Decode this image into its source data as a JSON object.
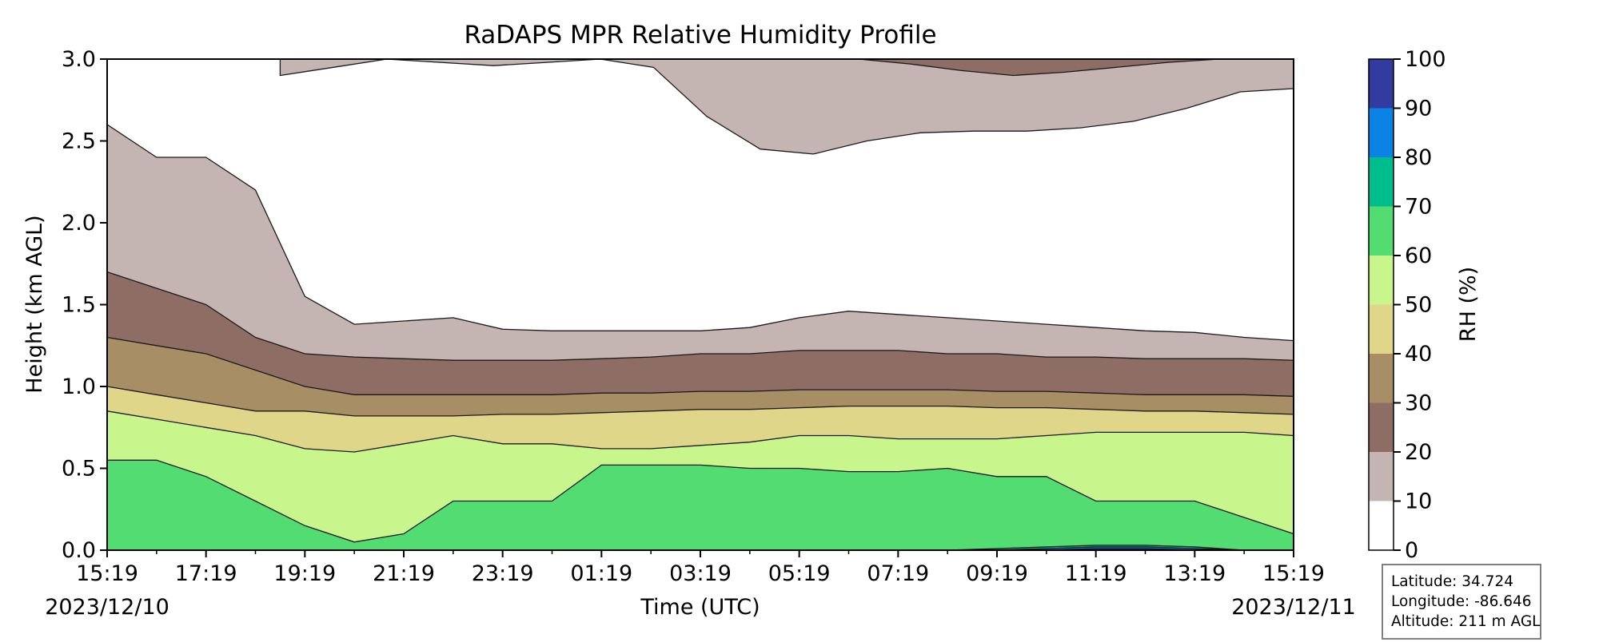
{
  "chart_data": {
    "type": "heatmap",
    "title": "RaDAPS MPR Relative Humidity Profile",
    "xlabel": "Time (UTC)",
    "ylabel": "Height (km AGL)",
    "x_ticks": [
      "15:19",
      "17:19",
      "19:19",
      "21:19",
      "23:19",
      "01:19",
      "03:19",
      "05:19",
      "07:19",
      "09:19",
      "11:19",
      "13:19",
      "15:19"
    ],
    "x_date_start": "2023/12/10",
    "x_date_end": "2023/12/11",
    "x_range_hours": [
      0,
      24
    ],
    "ylim": [
      0,
      3
    ],
    "y_ticks": [
      "0.0",
      "0.5",
      "1.0",
      "1.5",
      "2.0",
      "2.5",
      "3.0"
    ],
    "y_tick_values": [
      0,
      0.5,
      1.0,
      1.5,
      2.0,
      2.5,
      3.0
    ],
    "colorbar": {
      "label": "RH (%)",
      "ticks": [
        "0",
        "10",
        "20",
        "30",
        "40",
        "50",
        "60",
        "70",
        "80",
        "90",
        "100"
      ],
      "levels": [
        0,
        10,
        20,
        30,
        40,
        50,
        60,
        70,
        80,
        90,
        100
      ],
      "colors": [
        "#ffffff",
        "#c4b5b3",
        "#8e6e64",
        "#a88e64",
        "#e0d68a",
        "#c8f58c",
        "#52dc72",
        "#00be8c",
        "#0a82e6",
        "#323ca0"
      ]
    },
    "bands": [
      {
        "level": 90,
        "upper_km": [
          0,
          0,
          0,
          0,
          0,
          0,
          0,
          0,
          0,
          0,
          0,
          0,
          0,
          0,
          0,
          0,
          0,
          0,
          0,
          0,
          0.01,
          0.01,
          0,
          0,
          0
        ],
        "upper": 0
      },
      {
        "level": 80,
        "upper_km": [
          0,
          0,
          0,
          0,
          0,
          0,
          0,
          0,
          0,
          0,
          0,
          0,
          0,
          0,
          0,
          0,
          0,
          0,
          0,
          0.01,
          0.02,
          0.02,
          0.01,
          0,
          0
        ]
      },
      {
        "level": 70,
        "upper_km": [
          0,
          0,
          0,
          0,
          0,
          0,
          0,
          0,
          0,
          0,
          0,
          0,
          0,
          0,
          0,
          0,
          0,
          0,
          0.01,
          0.02,
          0.03,
          0.03,
          0.02,
          0,
          0
        ]
      },
      {
        "level": 60,
        "upper_km": [
          0.55,
          0.55,
          0.45,
          0.3,
          0.15,
          0.05,
          0.1,
          0.3,
          0.3,
          0.3,
          0.52,
          0.52,
          0.52,
          0.5,
          0.5,
          0.48,
          0.48,
          0.5,
          0.45,
          0.45,
          0.3,
          0.3,
          0.3,
          0.2,
          0.1
        ]
      },
      {
        "level": 50,
        "upper_km": [
          0.85,
          0.8,
          0.75,
          0.7,
          0.62,
          0.6,
          0.65,
          0.7,
          0.65,
          0.65,
          0.62,
          0.62,
          0.64,
          0.66,
          0.7,
          0.7,
          0.68,
          0.68,
          0.68,
          0.7,
          0.72,
          0.72,
          0.72,
          0.72,
          0.7
        ]
      },
      {
        "level": 40,
        "upper_km": [
          1.0,
          0.95,
          0.9,
          0.85,
          0.85,
          0.82,
          0.82,
          0.82,
          0.83,
          0.83,
          0.84,
          0.85,
          0.86,
          0.86,
          0.87,
          0.88,
          0.88,
          0.88,
          0.87,
          0.87,
          0.86,
          0.85,
          0.85,
          0.84,
          0.83
        ]
      },
      {
        "level": 30,
        "upper_km": [
          1.3,
          1.25,
          1.2,
          1.1,
          1.0,
          0.95,
          0.95,
          0.95,
          0.95,
          0.95,
          0.96,
          0.96,
          0.97,
          0.97,
          0.98,
          0.98,
          0.98,
          0.98,
          0.97,
          0.97,
          0.96,
          0.95,
          0.95,
          0.95,
          0.94
        ]
      },
      {
        "level": 20,
        "upper_km": [
          1.7,
          1.6,
          1.5,
          1.3,
          1.2,
          1.18,
          1.17,
          1.16,
          1.16,
          1.16,
          1.17,
          1.18,
          1.2,
          1.2,
          1.22,
          1.22,
          1.22,
          1.2,
          1.2,
          1.18,
          1.18,
          1.17,
          1.17,
          1.17,
          1.16
        ]
      },
      {
        "level": 10,
        "upper_km": [
          2.6,
          2.4,
          2.4,
          2.2,
          1.55,
          1.38,
          1.4,
          1.42,
          1.35,
          1.34,
          1.34,
          1.34,
          1.34,
          1.36,
          1.42,
          1.46,
          1.44,
          1.42,
          1.4,
          1.38,
          1.36,
          1.34,
          1.33,
          1.3,
          1.28
        ]
      }
    ]
  },
  "info": {
    "latitude": "Latitude: 34.724",
    "longitude": "Longitude: -86.646",
    "altitude": "Altitude: 211 m AGL"
  }
}
